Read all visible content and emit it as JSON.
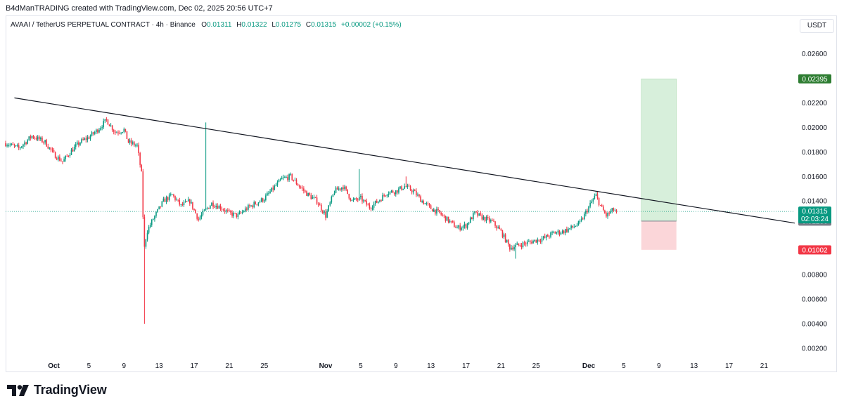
{
  "header": {
    "attribution": "B4dManTRADING created with TradingView.com, Dec 02, 2025 20:56 UTC+7"
  },
  "legend": {
    "symbol": "AVAAI / TetherUS PERPETUAL CONTRACT · 4h · Binance",
    "open_label": "O",
    "open": "0.01311",
    "high_label": "H",
    "high": "0.01322",
    "low_label": "L",
    "low": "0.01275",
    "close_label": "C",
    "close": "0.01315",
    "change": "+0.00002 (+0.15%)"
  },
  "currency_button": "USDT",
  "brand": {
    "name": "TradingView"
  },
  "colors": {
    "up": "#089981",
    "down": "#f23645",
    "trendline": "#131722",
    "target_zone": "#d7efdb",
    "stop_zone": "#fbd6d9",
    "target_label": "#2e7d32",
    "stop_label": "#f23645",
    "entry_label": "#787b86",
    "price_line": "#089981"
  },
  "chart_data": {
    "type": "candlestick",
    "timeframe": "4h",
    "ylim": [
      0.0012,
      0.0278
    ],
    "y_ticks": [
      "0.02600",
      "0.02200",
      "0.02000",
      "0.01800",
      "0.01600",
      "0.01400",
      "0.00800",
      "0.00600",
      "0.00400",
      "0.00200"
    ],
    "x_ticks": [
      {
        "label": "Oct",
        "day": 1
      },
      {
        "label": "5",
        "day": 5
      },
      {
        "label": "9",
        "day": 9
      },
      {
        "label": "13",
        "day": 13
      },
      {
        "label": "17",
        "day": 17
      },
      {
        "label": "21",
        "day": 21
      },
      {
        "label": "25",
        "day": 25
      },
      {
        "label": "Nov",
        "day": 32
      },
      {
        "label": "5",
        "day": 36
      },
      {
        "label": "9",
        "day": 40
      },
      {
        "label": "13",
        "day": 44
      },
      {
        "label": "17",
        "day": 48
      },
      {
        "label": "21",
        "day": 52
      },
      {
        "label": "25",
        "day": 56
      },
      {
        "label": "Dec",
        "day": 62
      },
      {
        "label": "5",
        "day": 66
      },
      {
        "label": "9",
        "day": 70
      },
      {
        "label": "13",
        "day": 74
      },
      {
        "label": "17",
        "day": 78
      },
      {
        "label": "21",
        "day": 82
      }
    ],
    "x_range_days": [
      -4.5,
      85.5
    ],
    "price_path": [
      [
        -4.5,
        0.0187
      ],
      [
        -3,
        0.0183
      ],
      [
        -1.5,
        0.0193
      ],
      [
        0,
        0.0188
      ],
      [
        1,
        0.0178
      ],
      [
        2,
        0.0172
      ],
      [
        3,
        0.0181
      ],
      [
        4,
        0.0188
      ],
      [
        5,
        0.0192
      ],
      [
        6,
        0.0198
      ],
      [
        7,
        0.0206
      ],
      [
        8,
        0.0196
      ],
      [
        9,
        0.0198
      ],
      [
        9.5,
        0.0188
      ],
      [
        10.5,
        0.0185
      ],
      [
        11,
        0.0162
      ],
      [
        11.3,
        0.01
      ],
      [
        11.6,
        0.0115
      ],
      [
        12.3,
        0.0125
      ],
      [
        13.5,
        0.014
      ],
      [
        14.5,
        0.0145
      ],
      [
        15.5,
        0.0136
      ],
      [
        16.5,
        0.014
      ],
      [
        17.5,
        0.0125
      ],
      [
        18.2,
        0.0132
      ],
      [
        19,
        0.0138
      ],
      [
        20,
        0.0135
      ],
      [
        21,
        0.013
      ],
      [
        22,
        0.0128
      ],
      [
        23,
        0.0134
      ],
      [
        24,
        0.0138
      ],
      [
        25,
        0.0142
      ],
      [
        26,
        0.015
      ],
      [
        27,
        0.0158
      ],
      [
        28,
        0.016
      ],
      [
        29,
        0.0152
      ],
      [
        30,
        0.0145
      ],
      [
        31,
        0.014
      ],
      [
        32,
        0.0128
      ],
      [
        33,
        0.0148
      ],
      [
        34,
        0.0152
      ],
      [
        35,
        0.014
      ],
      [
        36,
        0.0142
      ],
      [
        37,
        0.0135
      ],
      [
        38,
        0.014
      ],
      [
        39,
        0.0147
      ],
      [
        40,
        0.0148
      ],
      [
        41,
        0.0152
      ],
      [
        42,
        0.0148
      ],
      [
        43,
        0.014
      ],
      [
        44,
        0.0134
      ],
      [
        45,
        0.013
      ],
      [
        46,
        0.0124
      ],
      [
        47,
        0.0118
      ],
      [
        48,
        0.012
      ],
      [
        49,
        0.013
      ],
      [
        50,
        0.0126
      ],
      [
        51,
        0.0123
      ],
      [
        52,
        0.0115
      ],
      [
        53,
        0.0102
      ],
      [
        54,
        0.0104
      ],
      [
        55,
        0.0106
      ],
      [
        56,
        0.0108
      ],
      [
        57,
        0.011
      ],
      [
        58,
        0.0114
      ],
      [
        59,
        0.0115
      ],
      [
        60,
        0.0118
      ],
      [
        61,
        0.0122
      ],
      [
        62,
        0.0135
      ],
      [
        62.8,
        0.0145
      ],
      [
        63.4,
        0.0135
      ],
      [
        64,
        0.0128
      ],
      [
        64.8,
        0.0133
      ],
      [
        65.2,
        0.01315
      ]
    ],
    "wick_events": [
      {
        "day": 11.3,
        "low": 0.004
      },
      {
        "day": 18.3,
        "high": 0.0204
      },
      {
        "day": 35.8,
        "high": 0.0166
      },
      {
        "day": 41.2,
        "high": 0.016
      },
      {
        "day": 53.6,
        "low": 0.0093
      }
    ],
    "trendline": [
      [
        -3.5,
        0.0224
      ],
      [
        85.5,
        0.0122
      ]
    ],
    "position": {
      "day_start": 68,
      "day_end": 72,
      "entry": 0.01236,
      "target": 0.02395,
      "stop": 0.01002,
      "target_label": "0.02395",
      "entry_label": "0.01236",
      "stop_label": "0.01002"
    },
    "last_price": {
      "value": 0.01315,
      "label": "0.01315",
      "countdown": "02:03:24"
    }
  }
}
